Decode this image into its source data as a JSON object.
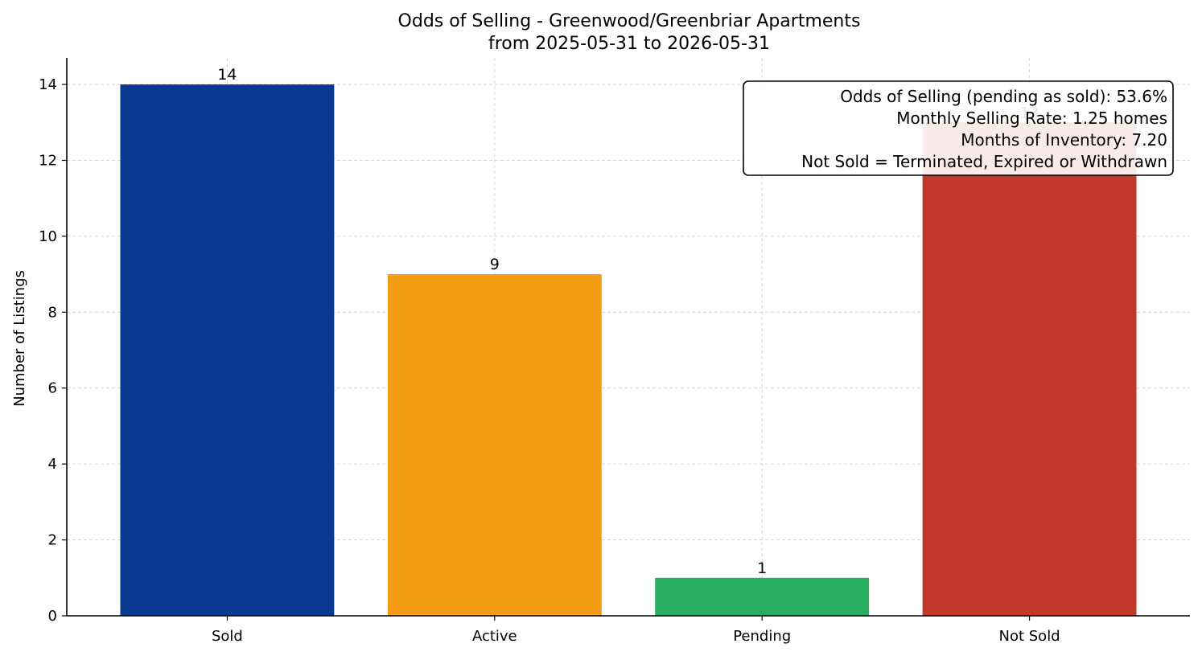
{
  "chart_data": {
    "type": "bar",
    "title": "Odds of Selling - Greenwood/Greenbriar Apartments",
    "subtitle": "from 2025-05-31 to 2026-05-31",
    "xlabel": "",
    "ylabel": "Number of Listings",
    "categories": [
      "Sold",
      "Active",
      "Pending",
      "Not Sold"
    ],
    "values": [
      14,
      9,
      1,
      13
    ],
    "data_labels": [
      "14",
      "9",
      "1",
      "13"
    ],
    "colors": [
      "#0a3a8f",
      "#f39c14",
      "#27ae60",
      "#c0392b"
    ],
    "ylim": [
      0,
      14.7
    ],
    "yticks": [
      0,
      2,
      4,
      6,
      8,
      10,
      12,
      14
    ],
    "grid": true,
    "legend": "none",
    "annotation_box": {
      "placement": "top-right",
      "lines": [
        "Odds of Selling (pending as sold): 53.6%",
        "Monthly Selling Rate: 1.25 homes",
        "Months of Inventory: 7.20",
        "Not Sold = Terminated, Expired or Withdrawn"
      ]
    }
  }
}
